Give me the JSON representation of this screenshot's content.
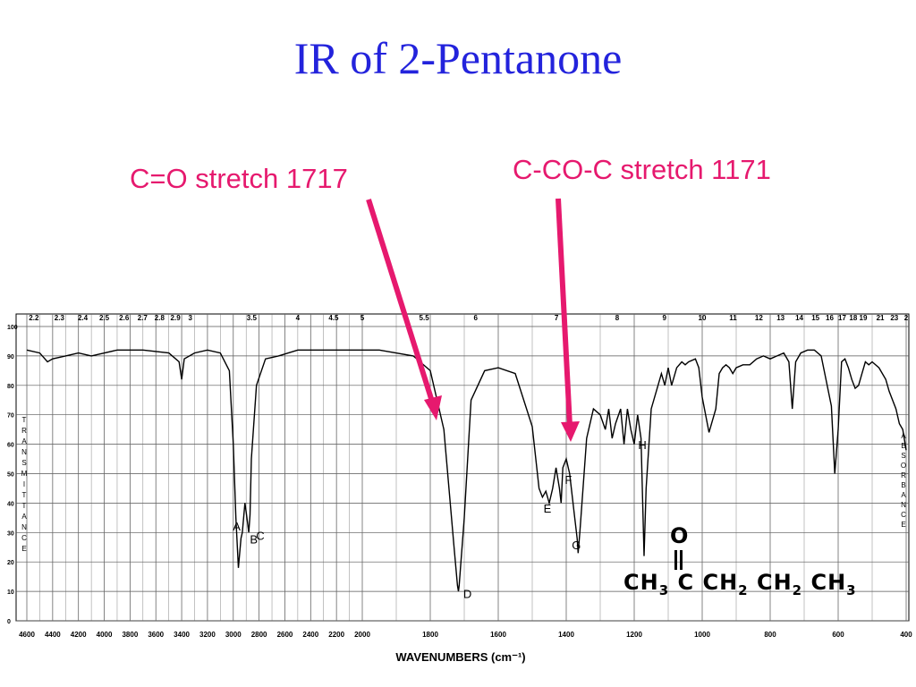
{
  "slide": {
    "title": "IR of 2-Pentanone",
    "annotation_co": "C=O stretch 1717",
    "annotation_cco": "C-CO-C stretch 1171",
    "annotation_color": "#e6196e",
    "title_color": "#2323dc"
  },
  "chart_data": {
    "type": "line",
    "xlabel": "WAVENUMBERS (cm⁻¹)",
    "ylabel_left": "TRANSMITTANCE",
    "ylabel_right": "ABSORBANCE",
    "x_ticks": [
      "4600",
      "4400",
      "4200",
      "4000",
      "3800",
      "3600",
      "3400",
      "3200",
      "3000",
      "2800",
      "2600",
      "2400",
      "2200",
      "2000",
      "1800",
      "1600",
      "1400",
      "1200",
      "1000",
      "800",
      "600",
      "400"
    ],
    "top_ticks": [
      "2.2",
      "2.3",
      "2.4",
      "2.5",
      "2.6",
      "2.7",
      "2.8",
      "2.9",
      "3",
      "3.5",
      "4",
      "4.5",
      "5",
      "5.5",
      "6",
      "7",
      "8",
      "9",
      "10",
      "11",
      "12",
      "13",
      "14",
      "15",
      "16",
      "17",
      "18",
      "19",
      "21",
      "23",
      "2"
    ],
    "y_ticks": [
      "100",
      "90",
      "80",
      "70",
      "60",
      "50",
      "40",
      "30",
      "20",
      "10",
      "0"
    ],
    "y_range": [
      0,
      100
    ],
    "peak_labels": [
      "A",
      "B",
      "C",
      "D",
      "E",
      "F",
      "G",
      "H"
    ],
    "series": [
      {
        "x": [
          4600,
          4500,
          4440,
          4400,
          4300,
          4200,
          4100,
          3900,
          3700,
          3500,
          3420,
          3400,
          3380,
          3300,
          3200,
          3100,
          3030,
          3000,
          2980,
          2960,
          2940,
          2930,
          2910,
          2900,
          2880,
          2870,
          2860,
          2820,
          2750,
          2650,
          2500,
          2300,
          2100,
          1950,
          1850,
          1800,
          1760,
          1730,
          1720,
          1717,
          1715,
          1700,
          1680,
          1640,
          1600,
          1550,
          1500,
          1480,
          1470,
          1460,
          1450,
          1440,
          1430,
          1420,
          1415,
          1410,
          1400,
          1390,
          1375,
          1368,
          1365,
          1360,
          1340,
          1320,
          1300,
          1285,
          1275,
          1265,
          1255,
          1240,
          1230,
          1220,
          1210,
          1200,
          1190,
          1180,
          1171,
          1165,
          1150,
          1130,
          1120,
          1110,
          1100,
          1090,
          1075,
          1060,
          1050,
          1040,
          1020,
          1010,
          1000,
          980,
          960,
          950,
          940,
          930,
          920,
          910,
          900,
          880,
          860,
          840,
          820,
          800,
          780,
          760,
          745,
          735,
          725,
          710,
          690,
          680,
          670,
          650,
          620,
          610,
          600,
          590,
          580,
          570,
          560,
          550,
          540,
          530,
          520,
          510,
          500,
          480,
          460,
          450,
          430,
          420,
          410,
          400
        ],
        "y": [
          92,
          91,
          88,
          89,
          90,
          91,
          90,
          92,
          92,
          91,
          88,
          82,
          89,
          91,
          92,
          91,
          85,
          60,
          35,
          18,
          28,
          30,
          40,
          37,
          30,
          36,
          55,
          80,
          89,
          90,
          92,
          92,
          92,
          92,
          90,
          85,
          65,
          25,
          12,
          10,
          12,
          35,
          75,
          85,
          86,
          84,
          66,
          45,
          42,
          44,
          40,
          45,
          52,
          45,
          40,
          52,
          55,
          50,
          35,
          28,
          23,
          30,
          62,
          72,
          70,
          65,
          72,
          62,
          67,
          72,
          60,
          72,
          65,
          60,
          70,
          62,
          22,
          45,
          72,
          80,
          84,
          80,
          86,
          80,
          86,
          88,
          87,
          88,
          89,
          86,
          76,
          64,
          72,
          84,
          86,
          87,
          86,
          84,
          86,
          87,
          87,
          89,
          90,
          89,
          90,
          91,
          88,
          72,
          88,
          91,
          92,
          92,
          92,
          90,
          73,
          50,
          65,
          88,
          89,
          86,
          82,
          79,
          80,
          84,
          88,
          87,
          88,
          86,
          82,
          78,
          72,
          67,
          65,
          58
        ]
      }
    ]
  },
  "molecule": {
    "o": "O",
    "groups": [
      "CH",
      "3",
      " C CH",
      "2",
      " CH",
      "2",
      " CH",
      "3"
    ]
  }
}
